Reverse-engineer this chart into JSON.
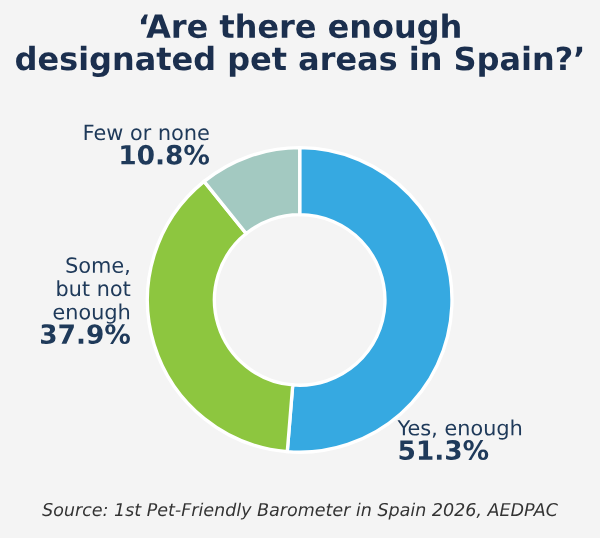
{
  "chart_data": {
    "type": "donut",
    "title": "‘Are there enough\ndesignated pet areas in Spain?’",
    "categories": [
      "Yes, enough",
      "Some,\nbut not\nenough",
      "Few or none"
    ],
    "values": [
      51.3,
      37.9,
      10.8
    ],
    "value_labels": [
      "51.3%",
      "37.9%",
      "10.8%"
    ],
    "colors": [
      "#36a9e1",
      "#8dc63f",
      "#a3c9c1"
    ],
    "annotations": [
      "Source: 1st Pet-Friendly Barometer in Spain 2026, AEDPAC"
    ]
  }
}
